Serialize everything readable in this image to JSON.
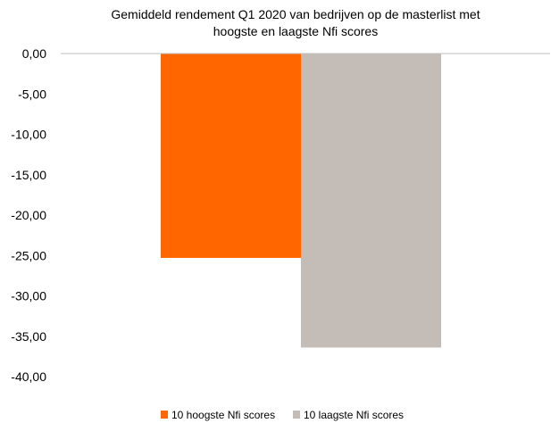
{
  "chart_data": {
    "type": "bar",
    "title": "Gemiddeld  rendement Q1 2020 van bedrijven op de masterlist met hoogste en laagste Nfi scores",
    "title_lines": [
      "Gemiddeld  rendement Q1 2020 van bedrijven op de masterlist met",
      "hoogste en laagste Nfi scores"
    ],
    "categories": [
      ""
    ],
    "series": [
      {
        "name": "10 hoogste Nfi scores",
        "values": [
          -25.3
        ],
        "color": "#FF6600"
      },
      {
        "name": "10 laagste Nfi scores",
        "values": [
          -36.4
        ],
        "color": "#C4BDB7"
      }
    ],
    "ylim": [
      -40,
      0
    ],
    "yticks": [
      0,
      -5,
      -10,
      -15,
      -20,
      -25,
      -30,
      -35,
      -40
    ],
    "ytick_labels": [
      "0,00",
      "-5,00",
      "-10,00",
      "-15,00",
      "-20,00",
      "-25,00",
      "-30,00",
      "-35,00",
      "-40,00"
    ],
    "xlabel": "",
    "ylabel": "",
    "grid": false,
    "legend_position": "bottom",
    "axis_color": "#BFBFBF"
  }
}
